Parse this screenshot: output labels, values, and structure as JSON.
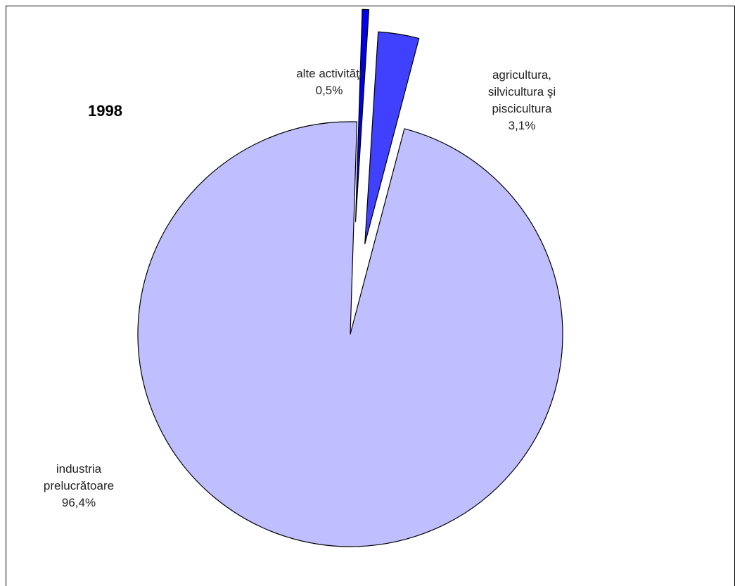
{
  "chart_data": {
    "type": "pie",
    "title": "1998",
    "slices": [
      {
        "name": "agricultura, silvicultura şi piscicultura",
        "label_lines": [
          "agricultura,",
          "silvicultura şi",
          "piscicultura"
        ],
        "value_label": "3,1%",
        "value": 3.1,
        "color": "#4040ff",
        "exploded": true
      },
      {
        "name": "industria prelucrătoare",
        "label_lines": [
          "industria",
          "prelucrătoare"
        ],
        "value_label": "96,4%",
        "value": 96.4,
        "color": "#bfbfff",
        "exploded": false
      },
      {
        "name": "alte activităţi",
        "label_lines": [
          "alte activităţi"
        ],
        "value_label": "0,5%",
        "value": 0.5,
        "color": "#0000ee",
        "exploded": true
      }
    ]
  }
}
